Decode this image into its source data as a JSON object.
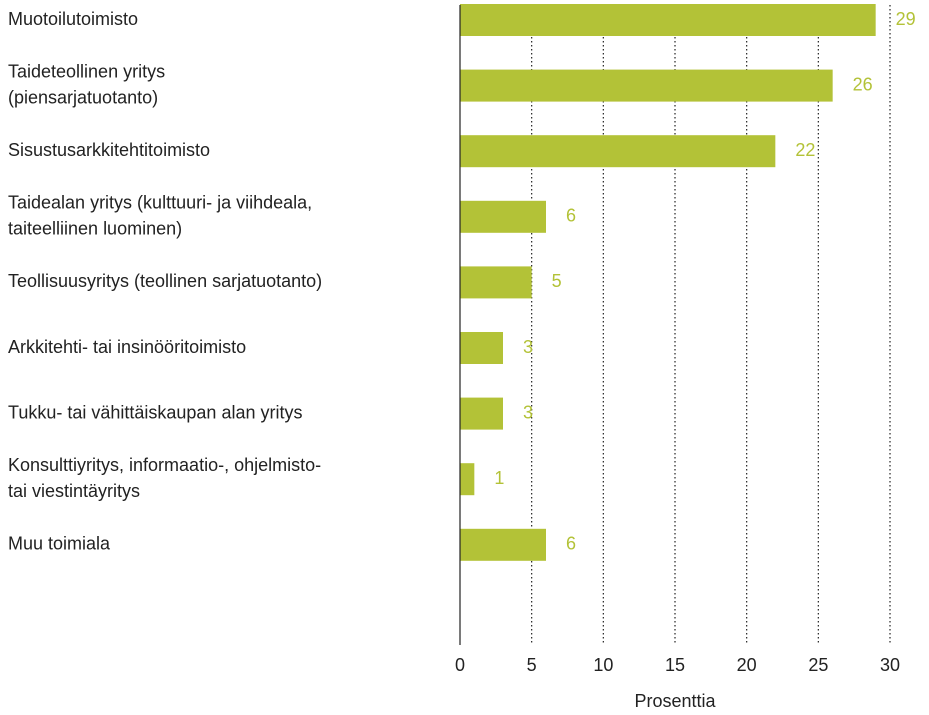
{
  "chart_data": {
    "type": "bar",
    "orientation": "horizontal",
    "categories": [
      [
        "Muotoilutoimisto"
      ],
      [
        "Taideteollinen yritys",
        "(piensarjatuotanto)"
      ],
      [
        "Sisustusarkkitehtitoimisto"
      ],
      [
        "Taidealan yritys (kulttuuri- ja viihdeala,",
        "taiteelliinen luominen)"
      ],
      [
        "Teollisuusyritys (teollinen sarjatuotanto)"
      ],
      [
        "Arkkitehti- tai insinööritoimisto"
      ],
      [
        "Tukku- tai vähittäiskaupan alan yritys"
      ],
      [
        "Konsulttiyritys, informaatio-, ohjelmisto-",
        "tai viestintäyritys"
      ],
      [
        "Muu toimiala"
      ]
    ],
    "values": [
      29,
      26,
      22,
      6,
      5,
      3,
      3,
      1,
      6
    ],
    "color": "#b3c237",
    "xlabel": "Prosenttia",
    "xlim": [
      0,
      30
    ],
    "xticks": [
      0,
      5,
      10,
      15,
      20,
      25,
      30
    ],
    "grid": true
  }
}
